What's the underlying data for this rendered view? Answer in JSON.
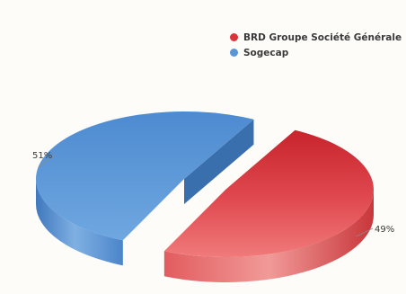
{
  "chart_data": {
    "type": "pie",
    "style": "3d-exploded",
    "legend_position": "top-right",
    "series": [
      {
        "name": "BRD Groupe Société Générale",
        "value": 49,
        "label": "49%",
        "color": "#d9333c"
      },
      {
        "name": "Sogecap",
        "value": 51,
        "label": "51%",
        "color": "#5a95d6"
      }
    ]
  }
}
